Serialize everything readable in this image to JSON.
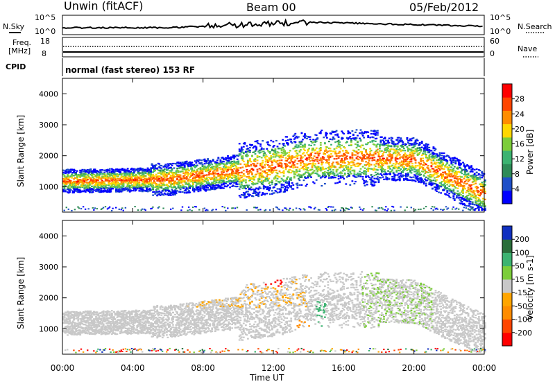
{
  "header": {
    "station": "Unwin (fitACF)",
    "beam": "Beam 00",
    "date": "05/Feb/2012"
  },
  "top_panels": {
    "nsky_label": "N.Sky",
    "nsearch_label": "N.Search",
    "nsky_ticks": [
      "10^5",
      "10^0"
    ],
    "nsky_right_ticks": [
      "10^5",
      "10^0"
    ],
    "freq_label": "Freq.",
    "freq_unit": "[MHz]",
    "freq_ticks": [
      "18",
      "8"
    ],
    "nave_label": "Nave",
    "nave_ticks": [
      "60",
      "0"
    ],
    "cpid_label": "CPID",
    "cpid_text": "normal (fast stereo) 153 RF"
  },
  "chart_data": [
    {
      "type": "heatmap",
      "name": "power-panel",
      "ylabel": "Slant Range [km]",
      "ylim": [
        180,
        4500
      ],
      "yticks": [
        1000,
        2000,
        3000,
        4000
      ],
      "xlim": [
        0,
        24
      ],
      "colorbar": {
        "label": "Power [dB]",
        "ticks": [
          4,
          8,
          12,
          16,
          20,
          24,
          28
        ],
        "range": [
          0,
          32
        ],
        "colors": [
          "#0000ff",
          "#1e4fc8",
          "#2e8b57",
          "#3cb371",
          "#7ccd3a",
          "#ffd700",
          "#ff8c00",
          "#ff4500",
          "#ff0000"
        ]
      }
    },
    {
      "type": "heatmap",
      "name": "velocity-panel",
      "ylabel": "Slant Range [km]",
      "ylim": [
        180,
        4500
      ],
      "yticks": [
        1000,
        2000,
        3000,
        4000
      ],
      "xlim": [
        0,
        24
      ],
      "colorbar": {
        "label": "Velocity [m s-1]",
        "ticks": [
          "200",
          "100",
          "50",
          "15",
          "-15",
          "-50",
          "-100",
          "-200"
        ],
        "colors": [
          "#1030c0",
          "#2a6e3a",
          "#3cb371",
          "#7ccd3a",
          "#c8c8c8",
          "#ffa500",
          "#ff8c00",
          "#ff4500",
          "#ff0000"
        ]
      }
    }
  ],
  "x_axis": {
    "label": "Time UT",
    "ticks": [
      "00:00",
      "04:00",
      "08:00",
      "12:00",
      "16:00",
      "20:00",
      "00:00"
    ],
    "hours": [
      0,
      4,
      8,
      12,
      16,
      20,
      24
    ]
  }
}
